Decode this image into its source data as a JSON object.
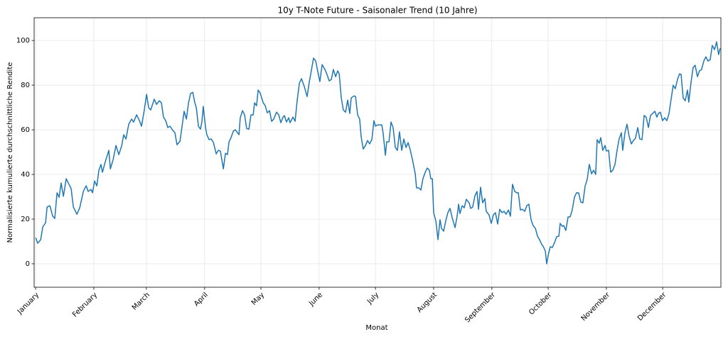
{
  "chart_data": {
    "type": "line",
    "title": "10y T-Note Future - Saisonaler Trend (10 Jahre)",
    "x_label": "Monat",
    "y_label": "Normalisierte kumulierte durchschnittliche Rendite",
    "grid": true,
    "xlim": [
      0.2,
      366.0
    ],
    "ylim": [
      -10.5,
      110.2
    ],
    "yticks": [
      0,
      20,
      40,
      60,
      80,
      100
    ],
    "xticks": [
      {
        "value": 1,
        "label": "January"
      },
      {
        "value": 32,
        "label": "February"
      },
      {
        "value": 60,
        "label": "March"
      },
      {
        "value": 91,
        "label": "April"
      },
      {
        "value": 121,
        "label": "May"
      },
      {
        "value": 152,
        "label": "June"
      },
      {
        "value": 182,
        "label": "July"
      },
      {
        "value": 213,
        "label": "August"
      },
      {
        "value": 244,
        "label": "September"
      },
      {
        "value": 274,
        "label": "October"
      },
      {
        "value": 305,
        "label": "November"
      },
      {
        "value": 335,
        "label": "December"
      }
    ],
    "x": [
      1.0,
      2.1,
      3.7,
      4.8,
      6.3,
      7.1,
      8.6,
      10.1,
      11.2,
      12.4,
      13.5,
      14.6,
      15.8,
      17.3,
      18.4,
      19.9,
      21.1,
      23.0,
      24.5,
      26.4,
      27.9,
      29.0,
      30.5,
      31.3,
      32.4,
      33.6,
      34.7,
      35.8,
      36.6,
      38.1,
      40.0,
      40.8,
      42.3,
      43.8,
      45.3,
      46.8,
      47.9,
      49.1,
      50.6,
      52.1,
      53.2,
      54.8,
      56.3,
      57.4,
      58.9,
      60.1,
      61.2,
      62.3,
      64.2,
      65.4,
      66.9,
      68.0,
      69.1,
      70.3,
      71.4,
      72.6,
      74.1,
      75.2,
      76.3,
      77.9,
      79.0,
      80.1,
      81.3,
      82.4,
      83.5,
      84.7,
      85.8,
      86.6,
      87.7,
      88.8,
      89.6,
      90.3,
      91.5,
      92.2,
      93.4,
      94.5,
      95.7,
      97.2,
      98.3,
      99.4,
      101.0,
      102.1,
      103.2,
      104.0,
      105.1,
      106.3,
      107.4,
      109.3,
      110.0,
      111.2,
      112.3,
      113.4,
      114.6,
      115.7,
      116.9,
      117.6,
      118.7,
      119.5,
      120.6,
      122.2,
      123.3,
      124.4,
      125.6,
      126.7,
      127.8,
      129.3,
      130.5,
      131.6,
      132.8,
      133.5,
      134.6,
      135.8,
      136.5,
      138.1,
      139.2,
      140.3,
      141.5,
      142.6,
      144.1,
      145.6,
      146.8,
      147.9,
      149.0,
      150.2,
      151.3,
      152.4,
      153.6,
      155.1,
      156.2,
      157.4,
      158.5,
      159.6,
      160.8,
      161.9,
      162.7,
      163.8,
      164.9,
      166.1,
      167.2,
      168.3,
      169.1,
      170.6,
      171.4,
      172.5,
      173.6,
      174.4,
      175.5,
      176.7,
      177.8,
      178.9,
      180.1,
      181.2,
      182.0,
      183.1,
      185.4,
      186.1,
      187.3,
      188.0,
      189.2,
      190.3,
      191.4,
      192.6,
      193.7,
      194.8,
      196.0,
      197.1,
      198.3,
      199.4,
      200.5,
      201.7,
      203.2,
      203.9,
      205.1,
      206.2,
      207.3,
      208.5,
      209.6,
      210.7,
      211.5,
      212.3,
      213.0,
      214.2,
      215.3,
      216.4,
      217.2,
      218.3,
      219.5,
      220.6,
      221.7,
      222.9,
      224.4,
      225.5,
      226.3,
      227.0,
      228.2,
      229.3,
      230.4,
      231.9,
      232.7,
      233.8,
      235.0,
      236.1,
      236.9,
      238.0,
      239.1,
      240.3,
      241.0,
      242.5,
      243.7,
      244.8,
      245.9,
      247.1,
      248.2,
      249.4,
      250.5,
      251.6,
      252.8,
      253.9,
      255.0,
      256.2,
      257.3,
      258.1,
      259.2,
      260.3,
      261.5,
      262.6,
      263.7,
      264.9,
      266.0,
      267.2,
      268.3,
      269.4,
      270.6,
      271.3,
      272.5,
      273.2,
      274.0,
      275.1,
      276.2,
      277.4,
      278.5,
      279.7,
      280.4,
      281.5,
      282.3,
      283.4,
      284.6,
      285.7,
      286.8,
      288.0,
      289.1,
      290.2,
      291.4,
      292.5,
      293.7,
      294.8,
      295.9,
      297.1,
      298.2,
      299.3,
      300.1,
      301.2,
      302.0,
      303.1,
      304.3,
      305.0,
      306.2,
      307.3,
      308.4,
      309.6,
      310.7,
      311.8,
      313.0,
      313.7,
      314.9,
      316.0,
      317.1,
      318.3,
      319.4,
      320.5,
      321.7,
      322.8,
      324.0,
      325.1,
      326.2,
      327.4,
      328.5,
      329.6,
      330.8,
      331.9,
      332.7,
      333.8,
      334.9,
      336.1,
      337.2,
      338.3,
      339.5,
      340.6,
      341.7,
      342.9,
      344.0,
      344.8,
      345.9,
      347.0,
      348.2,
      348.9,
      350.1,
      351.2,
      352.3,
      353.5,
      354.6,
      355.7,
      356.9,
      358.0,
      359.1,
      360.3,
      361.4,
      362.6,
      363.7,
      364.8,
      365.6
    ],
    "series": [
      {
        "name": "Saisonaler Trend",
        "color": "#1f77b4",
        "values": [
          11.7,
          9.2,
          10.8,
          16.5,
          18.4,
          25.4,
          26.0,
          21.3,
          20.3,
          31.8,
          29.8,
          36.2,
          30.2,
          38.1,
          36.2,
          33.7,
          25.4,
          22.2,
          25.1,
          32.4,
          34.9,
          32.4,
          33.3,
          31.8,
          37.1,
          34.9,
          41.9,
          44.5,
          41.0,
          45.7,
          50.8,
          42.5,
          46.7,
          53.0,
          48.9,
          52.7,
          57.8,
          55.9,
          62.5,
          64.8,
          63.5,
          66.7,
          64.1,
          61.6,
          68.9,
          75.9,
          69.9,
          68.9,
          73.7,
          71.4,
          73.0,
          72.1,
          65.7,
          64.1,
          61.0,
          61.6,
          59.7,
          58.7,
          53.3,
          54.9,
          61.6,
          68.3,
          64.8,
          71.8,
          76.2,
          76.8,
          72.1,
          69.9,
          61.6,
          60.3,
          63.8,
          70.5,
          61.0,
          57.8,
          55.6,
          55.9,
          54.3,
          49.2,
          50.8,
          50.5,
          42.5,
          49.5,
          48.9,
          54.6,
          56.5,
          59.4,
          60.0,
          57.8,
          65.4,
          68.6,
          66.7,
          60.6,
          60.3,
          66.7,
          66.7,
          72.1,
          70.8,
          77.8,
          76.5,
          72.1,
          70.8,
          67.6,
          68.6,
          63.8,
          64.8,
          67.9,
          66.7,
          63.2,
          65.7,
          66.4,
          63.5,
          65.4,
          63.2,
          65.7,
          63.8,
          73.0,
          81.0,
          82.9,
          79.4,
          74.9,
          81.6,
          86.7,
          92.1,
          90.8,
          86.0,
          81.6,
          89.2,
          87.0,
          84.8,
          81.9,
          82.6,
          87.0,
          83.8,
          86.4,
          85.1,
          74.3,
          68.9,
          67.9,
          73.3,
          67.3,
          74.3,
          75.2,
          74.9,
          66.7,
          64.8,
          56.8,
          51.4,
          53.0,
          55.2,
          53.7,
          55.6,
          64.1,
          61.6,
          62.2,
          62.2,
          58.4,
          48.6,
          54.6,
          54.6,
          63.5,
          61.0,
          52.1,
          50.8,
          59.1,
          50.8,
          55.9,
          52.1,
          54.3,
          51.1,
          46.7,
          40.3,
          34.0,
          34.0,
          33.0,
          38.1,
          41.0,
          42.9,
          41.9,
          38.1,
          38.1,
          22.9,
          19.1,
          10.8,
          19.7,
          15.9,
          14.6,
          19.4,
          22.9,
          24.8,
          20.6,
          16.2,
          21.3,
          26.7,
          22.5,
          26.0,
          25.1,
          28.9,
          27.3,
          24.8,
          25.4,
          30.5,
          32.4,
          24.4,
          34.3,
          27.3,
          29.2,
          23.5,
          21.9,
          18.1,
          21.9,
          22.9,
          17.8,
          24.4,
          22.9,
          23.5,
          22.2,
          24.1,
          21.3,
          35.6,
          32.4,
          31.8,
          31.8,
          24.1,
          24.4,
          23.5,
          26.0,
          26.7,
          19.7,
          17.1,
          15.9,
          12.4,
          10.8,
          8.6,
          7.9,
          5.7,
          0.0,
          3.8,
          7.6,
          7.3,
          9.5,
          12.1,
          12.4,
          18.1,
          16.8,
          17.1,
          14.9,
          21.0,
          21.0,
          24.1,
          29.8,
          31.8,
          31.8,
          27.6,
          27.3,
          34.9,
          37.8,
          44.5,
          40.3,
          41.9,
          40.0,
          55.6,
          54.0,
          56.5,
          50.8,
          53.0,
          50.5,
          50.8,
          41.0,
          41.9,
          44.5,
          50.8,
          55.9,
          58.7,
          50.8,
          58.7,
          62.5,
          57.2,
          53.7,
          55.2,
          56.2,
          61.0,
          55.9,
          55.6,
          66.4,
          65.7,
          61.0,
          66.4,
          67.3,
          68.3,
          65.7,
          67.3,
          67.9,
          64.1,
          65.4,
          64.1,
          67.0,
          73.7,
          80.0,
          78.4,
          82.6,
          85.1,
          84.8,
          74.3,
          73.0,
          77.8,
          72.4,
          81.3,
          87.9,
          88.9,
          83.8,
          86.4,
          87.0,
          90.8,
          92.7,
          90.8,
          91.4,
          97.8,
          95.9,
          99.4,
          93.7,
          96.5
        ]
      }
    ]
  }
}
